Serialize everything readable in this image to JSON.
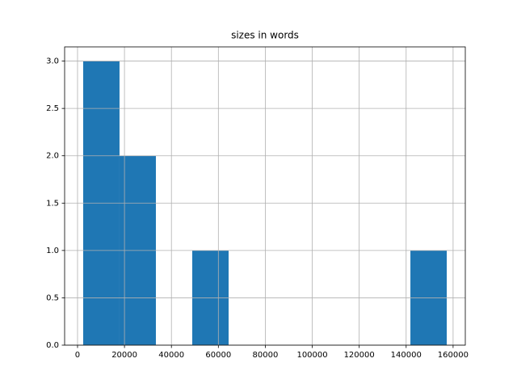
{
  "chart_data": {
    "type": "histogram",
    "title": "sizes in words",
    "bins": [
      2400,
      17890,
      33380,
      48870,
      64360,
      79850,
      95340,
      110830,
      126320,
      141810,
      157300
    ],
    "values": [
      3,
      2,
      0,
      1,
      0,
      0,
      0,
      0,
      0,
      1
    ],
    "color": "#1f77b4",
    "xlim": [
      -5500,
      165200
    ],
    "xticks": [
      0,
      20000,
      40000,
      60000,
      80000,
      100000,
      120000,
      140000,
      160000
    ],
    "ylim": [
      0,
      3.15
    ],
    "yticks": [
      {
        "value": 0,
        "label": "0.0"
      },
      0.5,
      {
        "value": 1,
        "label": "1.0"
      },
      1.5,
      {
        "value": 2,
        "label": "2.0"
      },
      2.5,
      {
        "value": 3,
        "label": "3.0"
      }
    ],
    "grid": true
  }
}
